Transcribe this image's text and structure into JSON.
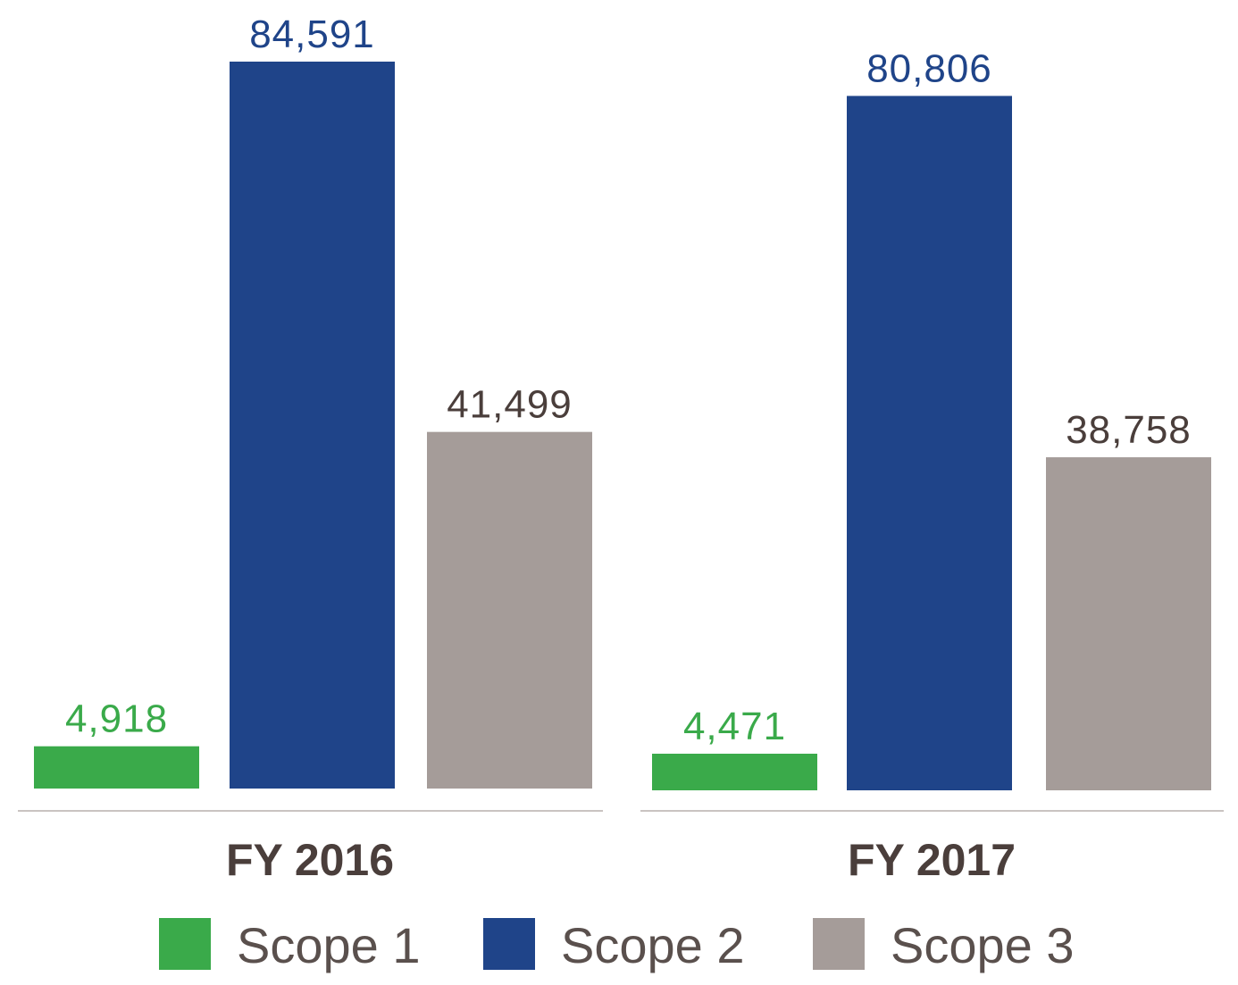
{
  "chart_data": {
    "type": "bar",
    "categories": [
      "FY 2016",
      "FY 2017"
    ],
    "series": [
      {
        "name": "Scope 1",
        "values": [
          4918,
          4471
        ],
        "labels": [
          "4,918",
          "4,471"
        ],
        "color": "#3aaa4a",
        "label_color": "#3aaa4a"
      },
      {
        "name": "Scope 2",
        "values": [
          84591,
          80806
        ],
        "labels": [
          "84,591",
          "80,806"
        ],
        "color": "#1f4489",
        "label_color": "#1f4489"
      },
      {
        "name": "Scope 3",
        "values": [
          41499,
          38758
        ],
        "labels": [
          "41,499",
          "38,758"
        ],
        "color": "#a59c99",
        "label_color": "#4a3e3b"
      }
    ],
    "title": "",
    "xlabel": "",
    "ylabel": "",
    "ylim": [
      0,
      84591
    ],
    "grid": false,
    "legend_position": "bottom"
  }
}
